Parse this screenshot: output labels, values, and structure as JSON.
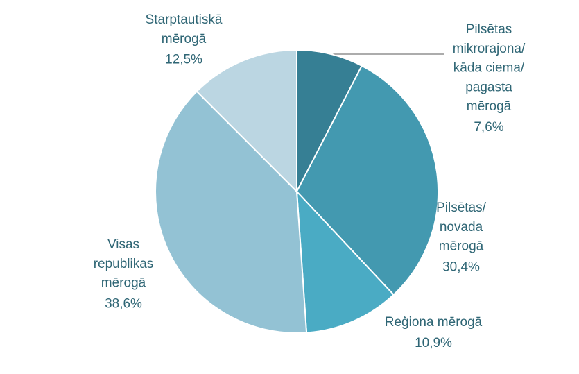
{
  "chart_data": {
    "type": "pie",
    "categories": [
      "Pilsētas\nmikrorajona/\nkāda ciema/\npagasta\nmērogā",
      "Pilsētas/\nnovada\nmērogā",
      "Reģiona mērogā",
      "Visas\nrepublikas\nmērogā",
      "Starptautiskā\nmērogā"
    ],
    "values": [
      7.6,
      30.4,
      10.9,
      38.6,
      12.5
    ],
    "value_labels": [
      "7,6%",
      "30,4%",
      "10,9%",
      "38,6%",
      "12,5%"
    ],
    "colors": [
      "#367f94",
      "#4399b0",
      "#4aabc4",
      "#93c2d4",
      "#bbd6e2"
    ]
  }
}
